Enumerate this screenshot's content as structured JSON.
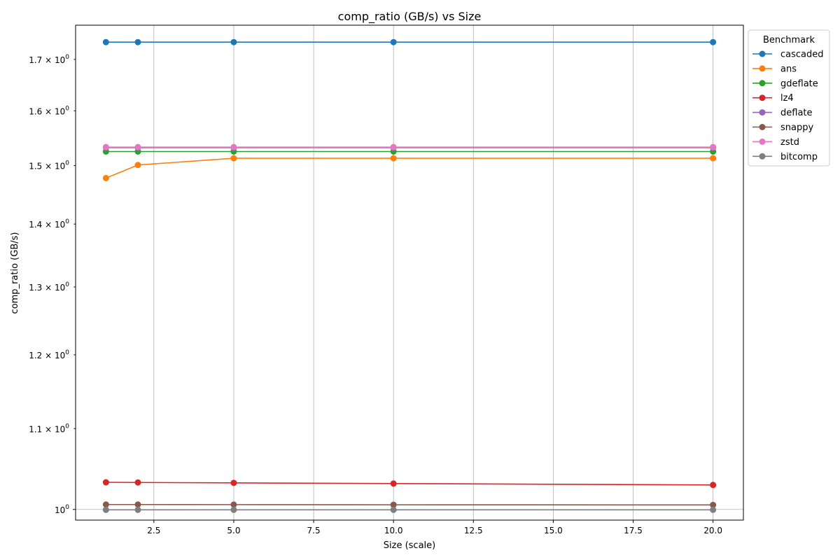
{
  "chart_data": {
    "type": "line",
    "title": "comp_ratio (GB/s) vs Size",
    "xlabel": "Size (scale)",
    "ylabel": "comp_ratio (GB/s)",
    "yscale": "log",
    "xlim": [
      0.05,
      20.95
    ],
    "ylim": [
      0.9875,
      1.77
    ],
    "grid": "vertical",
    "legend": {
      "title": "Benchmark",
      "placement": "outside-top-right"
    },
    "x": [
      1,
      2,
      5,
      10,
      20
    ],
    "x_ticks": [
      2.5,
      5.0,
      7.5,
      10.0,
      12.5,
      15.0,
      17.5,
      20.0
    ],
    "x_tick_labels": [
      "2.5",
      "5.0",
      "7.5",
      "10.0",
      "12.5",
      "15.0",
      "17.5",
      "20.0"
    ],
    "y_ticks": [
      1.0,
      1.1,
      1.2,
      1.3,
      1.4,
      1.5,
      1.6,
      1.7
    ],
    "y_tick_labels": [
      {
        "base": "10",
        "exp": "0"
      },
      {
        "base": "1.1 × 10",
        "exp": "0"
      },
      {
        "base": "1.2 × 10",
        "exp": "0"
      },
      {
        "base": "1.3 × 10",
        "exp": "0"
      },
      {
        "base": "1.4 × 10",
        "exp": "0"
      },
      {
        "base": "1.5 × 10",
        "exp": "0"
      },
      {
        "base": "1.6 × 10",
        "exp": "0"
      },
      {
        "base": "1.7 × 10",
        "exp": "0"
      }
    ],
    "series": [
      {
        "name": "cascaded",
        "color": "#1f77b4",
        "values": [
          1.735,
          1.735,
          1.735,
          1.735,
          1.735
        ]
      },
      {
        "name": "ans",
        "color": "#ff7f0e",
        "values": [
          1.478,
          1.501,
          1.513,
          1.513,
          1.513
        ]
      },
      {
        "name": "gdeflate",
        "color": "#2ca02c",
        "values": [
          1.525,
          1.525,
          1.525,
          1.525,
          1.525
        ]
      },
      {
        "name": "lz4",
        "color": "#d62728",
        "values": [
          1.0325,
          1.0323,
          1.0318,
          1.031,
          1.0293
        ]
      },
      {
        "name": "deflate",
        "color": "#9467bd",
        "values": [
          1.532,
          1.532,
          1.532,
          1.532,
          1.532
        ]
      },
      {
        "name": "snappy",
        "color": "#8c564b",
        "values": [
          1.0058,
          1.0058,
          1.0057,
          1.0055,
          1.0053
        ]
      },
      {
        "name": "zstd",
        "color": "#e377c2",
        "values": [
          1.533,
          1.533,
          1.533,
          1.533,
          1.533
        ]
      },
      {
        "name": "bitcomp",
        "color": "#7f7f7f",
        "values": [
          0.9995,
          0.9995,
          0.9995,
          0.9995,
          0.9995
        ]
      }
    ]
  }
}
